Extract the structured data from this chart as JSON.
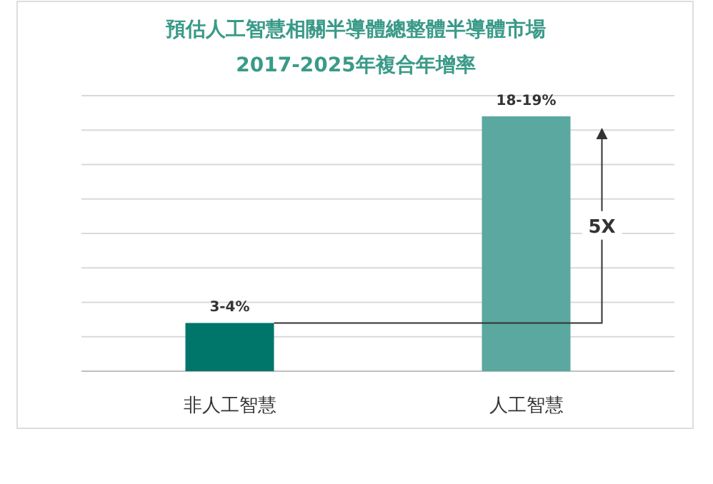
{
  "chart_data": {
    "type": "bar",
    "title": "預估人工智慧相關半導體總整體半導體市場",
    "subtitle": "2017-2025年複合年增率",
    "categories": [
      "非人工智慧",
      "人工智慧"
    ],
    "values": [
      3.5,
      18.5
    ],
    "colors": [
      "#00756a",
      "#5ba8a0"
    ],
    "value_labels": [
      "3-4%",
      "18-19%"
    ],
    "ylim": [
      0,
      20
    ],
    "yticks": [
      {
        "value": 0,
        "label": null
      },
      {
        "value": 2.5,
        "label": null
      },
      {
        "value": 5,
        "label": null
      },
      {
        "value": 7.5,
        "label": null
      },
      {
        "value": 10,
        "label": null
      },
      {
        "value": 12.5,
        "label": null
      },
      {
        "value": 15,
        "label": null
      },
      {
        "value": 17.5,
        "label": null
      },
      {
        "value": 20,
        "label": null
      }
    ],
    "grid": "y",
    "annotations": [
      "5X"
    ]
  }
}
